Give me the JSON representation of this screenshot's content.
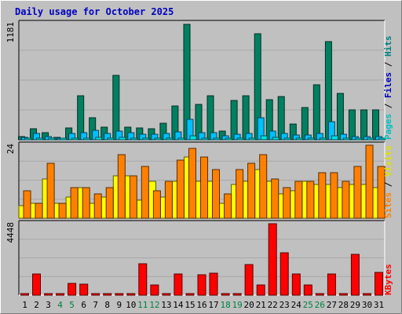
{
  "chart_data": {
    "type": "bar",
    "title": "Daily usage for October 2025",
    "categories": [
      "1",
      "2",
      "3",
      "4",
      "5",
      "6",
      "7",
      "8",
      "9",
      "10",
      "11",
      "12",
      "13",
      "14",
      "15",
      "16",
      "17",
      "18",
      "19",
      "20",
      "21",
      "22",
      "23",
      "24",
      "25",
      "26",
      "27",
      "28",
      "29",
      "30",
      "31"
    ],
    "weekend_days": [
      4,
      5,
      11,
      12,
      18,
      19,
      25,
      26
    ],
    "panels": [
      {
        "id": "hits",
        "axis_max_label": "1181",
        "ymax": 1181,
        "side_labels": [
          {
            "text": "Pages",
            "color": "#00c0c0"
          },
          {
            "text": " / ",
            "color": "#000000"
          },
          {
            "text": "Files",
            "color": "#0000c0"
          },
          {
            "text": " / ",
            "color": "#000000"
          },
          {
            "text": "Hits",
            "color": "#008080"
          }
        ],
        "series": [
          {
            "name": "Hits",
            "color": "#008060",
            "values": [
              30,
              110,
              70,
              25,
              120,
              450,
              220,
              130,
              655,
              130,
              120,
              110,
              170,
              340,
              1175,
              360,
              445,
              85,
              400,
              450,
              1080,
              405,
              435,
              160,
              330,
              560,
              1000,
              470,
              300,
              300,
              300
            ]
          },
          {
            "name": "Files",
            "color": "#00c0ff",
            "values": [
              22,
              60,
              35,
              18,
              60,
              70,
              95,
              60,
              90,
              75,
              55,
              55,
              60,
              80,
              210,
              70,
              75,
              40,
              55,
              65,
              220,
              85,
              60,
              45,
              50,
              65,
              185,
              55,
              35,
              35,
              35
            ]
          },
          {
            "name": "Pages",
            "color": "#00e0e0",
            "values": [
              8,
              15,
              10,
              6,
              12,
              18,
              25,
              15,
              22,
              18,
              12,
              12,
              12,
              18,
              40,
              18,
              18,
              10,
              15,
              18,
              40,
              20,
              15,
              10,
              12,
              15,
              40,
              15,
              10,
              10,
              10
            ]
          }
        ]
      },
      {
        "id": "visits",
        "axis_max_label": "24",
        "ymax": 24,
        "side_labels": [
          {
            "text": "Sites",
            "color": "#ff8000"
          },
          {
            "text": " / ",
            "color": "#000000"
          },
          {
            "text": "Visits",
            "color": "#e0e000"
          }
        ],
        "series": [
          {
            "name": "Visits",
            "color": "#ffff00",
            "values": [
              4,
              5,
              13,
              5,
              7,
              10,
              5,
              7,
              14,
              14,
              6,
              12,
              7,
              12,
              20,
              12,
              12,
              5,
              11,
              12,
              16,
              12,
              8,
              9,
              12,
              11,
              11,
              10,
              11,
              11,
              10
            ]
          },
          {
            "name": "Sites",
            "color": "#ff8000",
            "values": [
              9,
              5,
              18,
              5,
              10,
              10,
              8,
              10,
              21,
              14,
              17,
              9,
              12,
              19,
              23,
              20,
              16,
              8,
              16,
              18,
              21,
              13,
              10,
              12,
              12,
              15,
              15,
              12,
              17,
              24,
              17
            ]
          }
        ]
      },
      {
        "id": "kbytes",
        "axis_max_label": "4448",
        "ymax": 4448,
        "side_labels": [
          {
            "text": "KBytes",
            "color": "#ff0000"
          }
        ],
        "series": [
          {
            "name": "KBytes",
            "color": "#ff0000",
            "values": [
              20,
              1300,
              20,
              20,
              750,
              700,
              20,
              20,
              100,
              30,
              1950,
              650,
              20,
              1300,
              50,
              1250,
              1350,
              20,
              20,
              1900,
              650,
              4450,
              2650,
              1300,
              650,
              20,
              1300,
              20,
              2550,
              20,
              1400
            ]
          }
        ]
      }
    ],
    "colors": {
      "background": "#c0c0c0",
      "plot": "#c0c0c0",
      "grid": "#a8a8a8",
      "title": "#0000c0",
      "weekday_label": "#000000",
      "weekend_label": "#008040"
    }
  }
}
